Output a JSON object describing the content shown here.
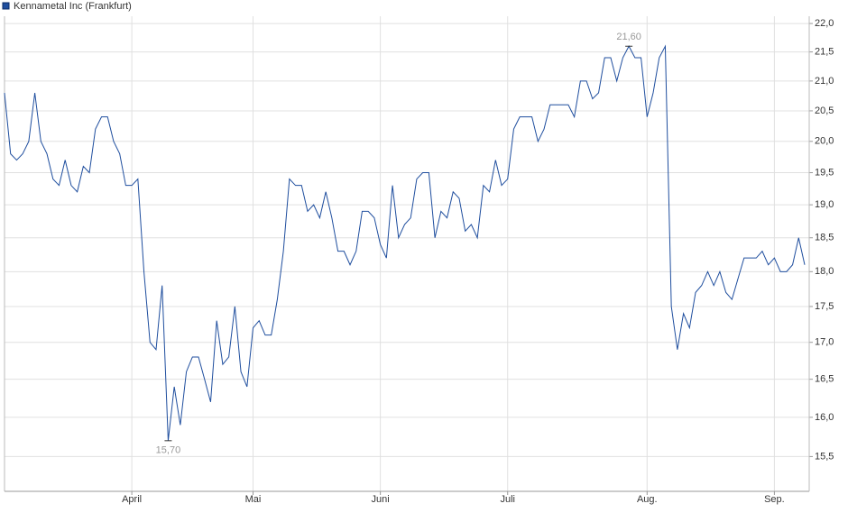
{
  "chart_data": {
    "type": "line",
    "title": "Kennametal Inc (Frankfurt)",
    "log_scale": true,
    "grid": true,
    "legend": "top-left",
    "min_label": "15,70",
    "max_label": "21,60",
    "categories": [
      null,
      null,
      null,
      null,
      null,
      null,
      null,
      null,
      null,
      null,
      null,
      null,
      null,
      null,
      null,
      null,
      null,
      null,
      null,
      null,
      null,
      "April",
      null,
      null,
      null,
      null,
      null,
      null,
      null,
      null,
      null,
      null,
      null,
      null,
      null,
      null,
      null,
      null,
      null,
      null,
      null,
      "Mai",
      null,
      null,
      null,
      null,
      null,
      null,
      null,
      null,
      null,
      null,
      null,
      null,
      null,
      null,
      null,
      null,
      null,
      null,
      null,
      null,
      "Juni",
      null,
      null,
      null,
      null,
      null,
      null,
      null,
      null,
      null,
      null,
      null,
      null,
      null,
      null,
      null,
      null,
      null,
      null,
      null,
      null,
      "Juli",
      null,
      null,
      null,
      null,
      null,
      null,
      null,
      null,
      null,
      null,
      null,
      null,
      null,
      null,
      null,
      null,
      null,
      null,
      null,
      null,
      null,
      null,
      "Aug.",
      null,
      null,
      null,
      null,
      null,
      null,
      null,
      null,
      null,
      null,
      null,
      null,
      null,
      null,
      null,
      null,
      null,
      null,
      null,
      null,
      "Sep.",
      null,
      null,
      null,
      null,
      null
    ],
    "series": [
      {
        "name": "Kennametal Inc (Frankfurt)",
        "color": "#1f4e9e",
        "values": [
          20.8,
          19.8,
          19.7,
          19.8,
          20.0,
          20.8,
          20.0,
          19.8,
          19.4,
          19.3,
          19.7,
          19.3,
          19.2,
          19.6,
          19.5,
          20.2,
          20.4,
          20.4,
          20.0,
          19.8,
          19.3,
          19.3,
          19.4,
          18.0,
          17.0,
          16.9,
          17.8,
          15.7,
          16.4,
          15.9,
          16.6,
          16.8,
          16.8,
          16.5,
          16.2,
          17.3,
          16.7,
          16.8,
          17.5,
          16.6,
          16.4,
          17.2,
          17.3,
          17.1,
          17.1,
          17.6,
          18.3,
          19.4,
          19.3,
          19.3,
          18.9,
          19.0,
          18.8,
          19.2,
          18.8,
          18.3,
          18.3,
          18.1,
          18.3,
          18.9,
          18.9,
          18.8,
          18.4,
          18.2,
          19.3,
          18.5,
          18.7,
          18.8,
          19.4,
          19.5,
          19.5,
          18.5,
          18.9,
          18.8,
          19.2,
          19.1,
          18.6,
          18.7,
          18.5,
          19.3,
          19.2,
          19.7,
          19.3,
          19.4,
          20.2,
          20.4,
          20.4,
          20.4,
          20.0,
          20.2,
          20.6,
          20.6,
          20.6,
          20.6,
          20.4,
          21.0,
          21.0,
          20.7,
          20.8,
          21.4,
          21.4,
          21.0,
          21.4,
          21.6,
          21.4,
          21.4,
          20.4,
          20.8,
          21.4,
          21.6,
          17.5,
          16.9,
          17.4,
          17.2,
          17.7,
          17.8,
          18.0,
          17.8,
          18.0,
          17.7,
          17.6,
          17.9,
          18.2,
          18.2,
          18.2,
          18.3,
          18.1,
          18.2,
          18.0,
          18.0,
          18.1,
          18.5,
          18.1
        ]
      }
    ],
    "ylim": [
      15.07,
      22.13
    ],
    "yticks": [
      {
        "value": 15.5,
        "label": "15,5"
      },
      {
        "value": 16,
        "label": "16,0"
      },
      {
        "value": 16.5,
        "label": "16,5"
      },
      {
        "value": 17,
        "label": "17,0"
      },
      {
        "value": 17.5,
        "label": "17,5"
      },
      {
        "value": 18,
        "label": "18,0"
      },
      {
        "value": 18.5,
        "label": "18,5"
      },
      {
        "value": 19,
        "label": "19,0"
      },
      {
        "value": 19.5,
        "label": "19,5"
      },
      {
        "value": 20,
        "label": "20,0"
      },
      {
        "value": 20.5,
        "label": "20,5"
      },
      {
        "value": 21,
        "label": "21,0"
      },
      {
        "value": 21.5,
        "label": "21,5"
      },
      {
        "value": 22,
        "label": "22,0"
      }
    ]
  }
}
